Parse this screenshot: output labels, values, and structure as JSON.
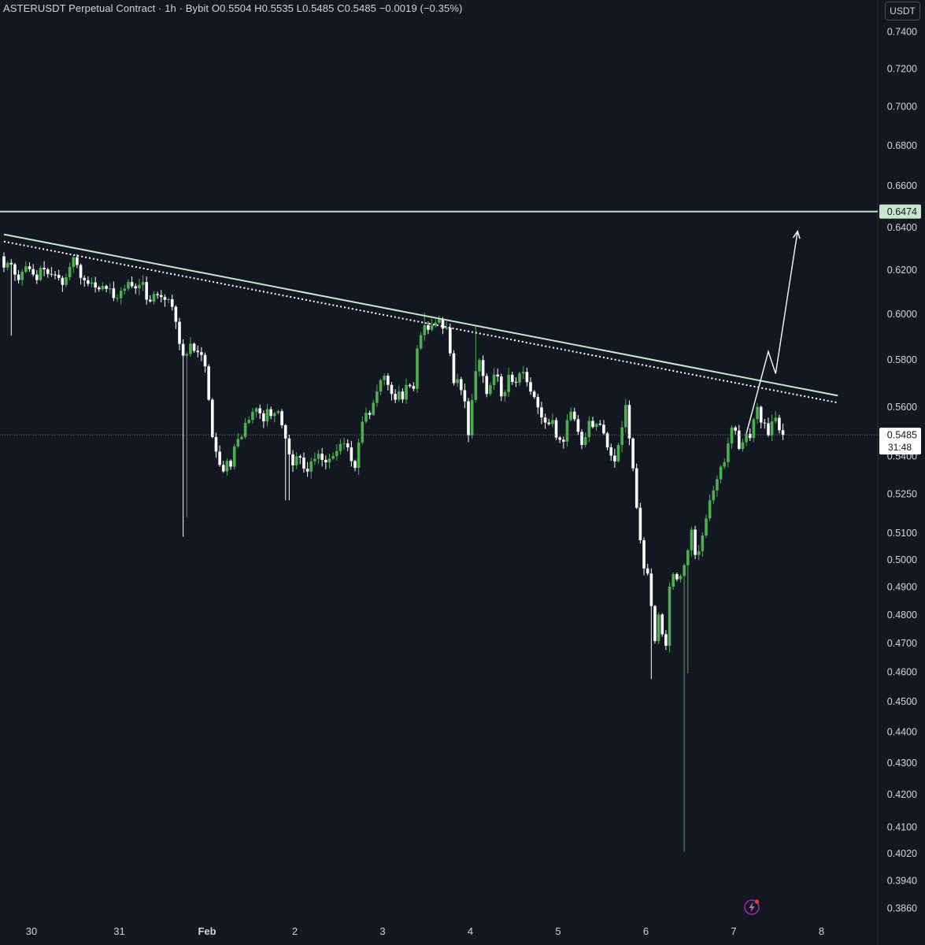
{
  "header": {
    "symbol": "ASTERUSDT Perpetual Contract",
    "interval": "1h",
    "exchange": "Bybit",
    "open": "O0.5504",
    "high": "H0.5535",
    "low": "L0.5485",
    "close": "C0.5485",
    "change": "−0.0019 (−0.35%)"
  },
  "currency_label": "USDT",
  "colors": {
    "background": "#131722",
    "up": "#4caf50",
    "down": "#ffffff",
    "trendline": "#c8e6c9",
    "axis_text": "#d1d4dc"
  },
  "chart_data": {
    "type": "candlestick",
    "y_scale": "log",
    "ylim": [
      0.383,
      0.755
    ],
    "y_ticks": [
      "0.7400",
      "0.7200",
      "0.7000",
      "0.6800",
      "0.6600",
      "0.6400",
      "0.6200",
      "0.6000",
      "0.5800",
      "0.5600",
      "0.5400",
      "0.5250",
      "0.5100",
      "0.5000",
      "0.4900",
      "0.4800",
      "0.4700",
      "0.4600",
      "0.4500",
      "0.4400",
      "0.4300",
      "0.4200",
      "0.4100",
      "0.4020",
      "0.3940",
      "0.3860"
    ],
    "x_ticks": [
      "30",
      "31",
      "Feb",
      "2",
      "3",
      "4",
      "5",
      "6",
      "7",
      "8"
    ],
    "horizontal_level": {
      "value": 0.6474,
      "label": "0.6474"
    },
    "last_price": {
      "value": 0.5485,
      "label": "0.5485",
      "countdown": "31:48"
    },
    "trendline": {
      "start": {
        "date": "Jan 29 21:00",
        "price": 0.6365
      },
      "end": {
        "date": "Feb 8 09:00",
        "price": 0.5647
      }
    },
    "projection_arrow": [
      {
        "date": "Feb 7 08:00",
        "price": 0.549
      },
      {
        "date": "Feb 7 14:00",
        "price": 0.5835
      },
      {
        "date": "Feb 7 16:00",
        "price": 0.574
      },
      {
        "date": "Feb 7 22:00",
        "price": 0.638
      }
    ],
    "candle_interval": "1h",
    "candles_start": "Jan 29 21:00",
    "series": [
      {
        "name": "price",
        "values_hourly_close": [
          0.621,
          0.6232,
          0.6225,
          0.6178,
          0.6153,
          0.6191,
          0.6216,
          0.6203,
          0.6178,
          0.6153,
          0.6209,
          0.6202,
          0.6181,
          0.6178,
          0.6177,
          0.6163,
          0.6131,
          0.6166,
          0.6213,
          0.6258,
          0.6222,
          0.6163,
          0.6152,
          0.6136,
          0.6142,
          0.6119,
          0.6111,
          0.6126,
          0.6113,
          0.6115,
          0.6071,
          0.6071,
          0.6104,
          0.6114,
          0.6144,
          0.6125,
          0.6115,
          0.6131,
          0.6144,
          0.6064,
          0.6056,
          0.6089,
          0.6084,
          0.6076,
          0.6063,
          0.6066,
          0.6032,
          0.5965,
          0.5868,
          0.5817,
          0.5824,
          0.5869,
          0.5838,
          0.5832,
          0.582,
          0.5771,
          0.563,
          0.5476,
          0.5417,
          0.5364,
          0.5338,
          0.538,
          0.5357,
          0.5438,
          0.5468,
          0.5476,
          0.5534,
          0.5546,
          0.5579,
          0.5594,
          0.5573,
          0.554,
          0.559,
          0.5562,
          0.5574,
          0.5582,
          0.5524,
          0.547,
          0.5406,
          0.5362,
          0.5398,
          0.5393,
          0.5349,
          0.5337,
          0.5378,
          0.5388,
          0.5408,
          0.5384,
          0.5374,
          0.5389,
          0.5399,
          0.5419,
          0.5448,
          0.545,
          0.5434,
          0.5379,
          0.5352,
          0.5454,
          0.5539,
          0.5575,
          0.5567,
          0.5617,
          0.5664,
          0.5712,
          0.5731,
          0.5692,
          0.5654,
          0.563,
          0.5664,
          0.5631,
          0.5692,
          0.5687,
          0.5676,
          0.5848,
          0.5906,
          0.595,
          0.593,
          0.5949,
          0.5961,
          0.5978,
          0.5935,
          0.5939,
          0.5827,
          0.57,
          0.5716,
          0.567,
          0.5623,
          0.5483,
          0.5629,
          0.575,
          0.5798,
          0.573,
          0.5654,
          0.5691,
          0.5736,
          0.5728,
          0.5644,
          0.5662,
          0.5735,
          0.5705,
          0.5702,
          0.5741,
          0.5747,
          0.5704,
          0.5664,
          0.5641,
          0.5598,
          0.5556,
          0.5535,
          0.5529,
          0.5545,
          0.5474,
          0.5465,
          0.5457,
          0.5545,
          0.558,
          0.5549,
          0.5497,
          0.5444,
          0.5476,
          0.5542,
          0.5517,
          0.553,
          0.5526,
          0.5491,
          0.5434,
          0.5401,
          0.5378,
          0.5444,
          0.5516,
          0.5608,
          0.547,
          0.535,
          0.5196,
          0.5072,
          0.4967,
          0.4948,
          0.483,
          0.4706,
          0.48,
          0.473,
          0.469,
          0.49,
          0.4946,
          0.4927,
          0.4939,
          0.4979,
          0.5034,
          0.5112,
          0.5017,
          0.5031,
          0.509,
          0.5155,
          0.5225,
          0.5263,
          0.5307,
          0.5357,
          0.5375,
          0.545,
          0.5515,
          0.5502,
          0.5428,
          0.5455,
          0.5489,
          0.5472,
          0.5549,
          0.56,
          0.5535,
          0.5532,
          0.5483,
          0.554,
          0.5555,
          0.5504,
          0.5485
        ]
      }
    ]
  }
}
